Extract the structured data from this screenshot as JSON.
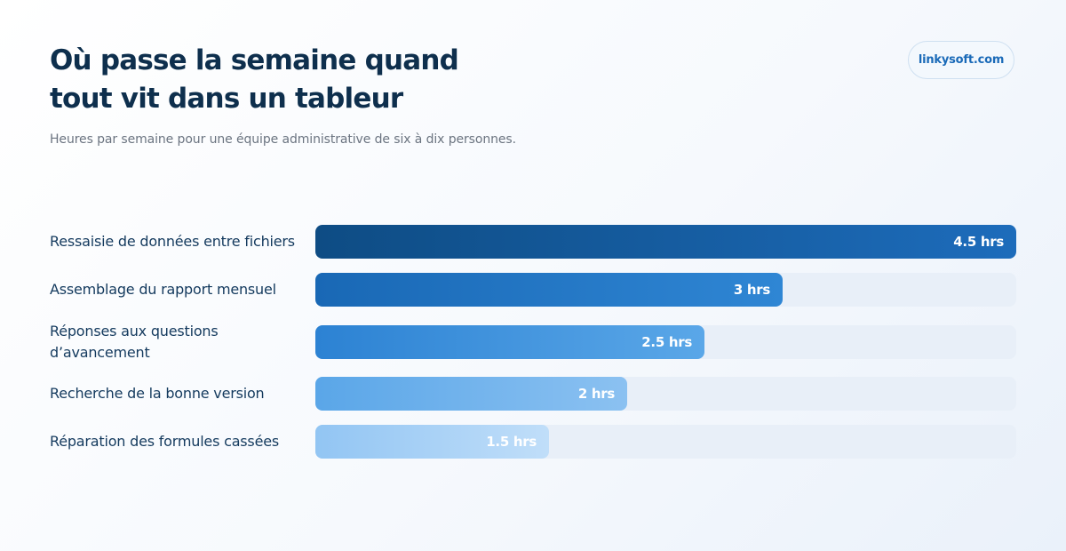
{
  "header": {
    "title_line1": "Où passe la semaine quand",
    "title_line2": "tout vit dans un tableur",
    "subtitle": "Heures par semaine pour une équipe administrative de six à dix personnes.",
    "brand": "linkysoft.com"
  },
  "chart_data": {
    "type": "bar",
    "orientation": "horizontal",
    "categories": [
      "Ressaisie de données entre fichiers",
      "Assemblage du rapport mensuel",
      "Réponses aux questions d’avancement",
      "Recherche de la bonne version",
      "Réparation des formules cassées"
    ],
    "values": [
      4.5,
      3,
      2.5,
      2,
      1.5
    ],
    "value_labels": [
      "4.5 hrs",
      "3 hrs",
      "2.5 hrs",
      "2 hrs",
      "1.5 hrs"
    ],
    "unit": "hrs",
    "xlim": [
      0,
      4.5
    ],
    "grid": false,
    "legend": "none",
    "colors": [
      [
        "#0e4c84",
        "#1d6cbb"
      ],
      [
        "#1968b5",
        "#2f86d4"
      ],
      [
        "#2c82d3",
        "#5aa7e8"
      ],
      [
        "#5aa6e8",
        "#8bc1f1"
      ],
      [
        "#92c5f3",
        "#c0def9"
      ]
    ]
  }
}
